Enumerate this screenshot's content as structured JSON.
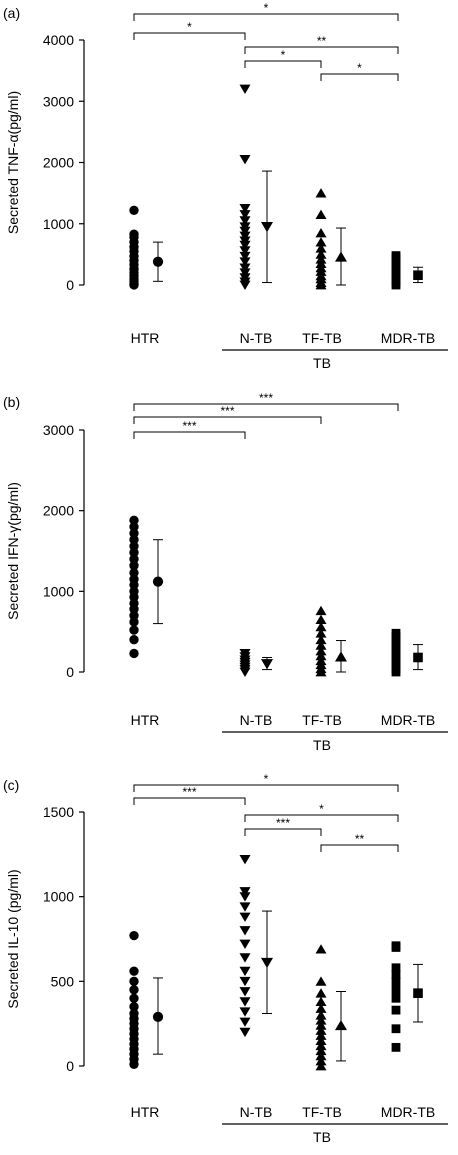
{
  "chart_data": [
    {
      "type": "scatter",
      "panel_label": "(a)",
      "ylabel": "Secreted TNF-α(pg/ml)",
      "ylim": [
        0,
        4000
      ],
      "yticks": [
        0,
        1000,
        2000,
        3000,
        4000
      ],
      "categories": [
        "HTR",
        "N-TB",
        "TF-TB",
        "MDR-TB"
      ],
      "group_label": "TB",
      "grid": false,
      "series": [
        {
          "category": "HTR",
          "marker": "circle",
          "values": [
            0,
            20,
            60,
            100,
            150,
            200,
            260,
            330,
            400,
            470,
            550,
            620,
            700,
            780,
            830,
            1220
          ],
          "mean": 380,
          "sd_low": 60,
          "sd_high": 700
        },
        {
          "category": "N-TB",
          "marker": "triangle-down",
          "values": [
            0,
            50,
            120,
            200,
            280,
            380,
            470,
            560,
            650,
            720,
            800,
            880,
            950,
            1050,
            1150,
            1250,
            2050,
            3200
          ],
          "mean": 950,
          "sd_low": 40,
          "sd_high": 1860
        },
        {
          "category": "TF-TB",
          "marker": "triangle-up",
          "values": [
            0,
            40,
            100,
            150,
            220,
            280,
            350,
            420,
            500,
            600,
            700,
            850,
            1150,
            1500
          ],
          "mean": 460,
          "sd_low": 0,
          "sd_high": 930
        },
        {
          "category": "MDR-TB",
          "marker": "square",
          "values": [
            0,
            40,
            80,
            120,
            160,
            200,
            240,
            280,
            320,
            360,
            400,
            440,
            480
          ],
          "mean": 160,
          "sd_low": 40,
          "sd_high": 290
        }
      ],
      "significance": [
        {
          "from": "HTR",
          "to": "MDR-TB",
          "label": "*"
        },
        {
          "from": "HTR",
          "to": "N-TB",
          "label": "*"
        },
        {
          "from": "N-TB",
          "to": "MDR-TB",
          "label": "**"
        },
        {
          "from": "N-TB",
          "to": "TF-TB",
          "label": "*"
        },
        {
          "from": "TF-TB",
          "to": "MDR-TB",
          "label": "*"
        }
      ]
    },
    {
      "type": "scatter",
      "panel_label": "(b)",
      "ylabel": "Secreted IFN-γ(pg/ml)",
      "ylim": [
        0,
        3000
      ],
      "yticks": [
        0,
        1000,
        2000,
        3000
      ],
      "categories": [
        "HTR",
        "N-TB",
        "TF-TB",
        "MDR-TB"
      ],
      "group_label": "TB",
      "grid": false,
      "series": [
        {
          "category": "HTR",
          "marker": "circle",
          "values": [
            230,
            400,
            520,
            620,
            700,
            780,
            850,
            930,
            1000,
            1080,
            1150,
            1230,
            1320,
            1400,
            1480,
            1560,
            1640,
            1720,
            1800,
            1880
          ],
          "mean": 1120,
          "sd_low": 600,
          "sd_high": 1640
        },
        {
          "category": "N-TB",
          "marker": "triangle-down",
          "values": [
            0,
            30,
            60,
            90,
            120,
            150,
            190,
            230
          ],
          "mean": 100,
          "sd_low": 30,
          "sd_high": 180
        },
        {
          "category": "TF-TB",
          "marker": "triangle-up",
          "values": [
            0,
            40,
            90,
            140,
            200,
            260,
            330,
            400,
            480,
            560,
            650,
            760
          ],
          "mean": 190,
          "sd_low": 0,
          "sd_high": 390
        },
        {
          "category": "MDR-TB",
          "marker": "square",
          "values": [
            0,
            40,
            80,
            120,
            160,
            200,
            240,
            280,
            320,
            360,
            400,
            440,
            480
          ],
          "mean": 180,
          "sd_low": 30,
          "sd_high": 340
        }
      ],
      "significance": [
        {
          "from": "HTR",
          "to": "MDR-TB",
          "label": "***"
        },
        {
          "from": "HTR",
          "to": "TF-TB",
          "label": "***"
        },
        {
          "from": "HTR",
          "to": "N-TB",
          "label": "***"
        }
      ]
    },
    {
      "type": "scatter",
      "panel_label": "(c)",
      "ylabel": "Secreted IL-10 (pg/ml)",
      "ylim": [
        0,
        1500
      ],
      "yticks": [
        0,
        500,
        1000,
        1500
      ],
      "categories": [
        "HTR",
        "N-TB",
        "TF-TB",
        "MDR-TB"
      ],
      "group_label": "TB",
      "grid": false,
      "series": [
        {
          "category": "HTR",
          "marker": "circle",
          "values": [
            10,
            40,
            70,
            100,
            130,
            160,
            190,
            220,
            250,
            280,
            310,
            350,
            400,
            450,
            500,
            560,
            770
          ],
          "mean": 290,
          "sd_low": 70,
          "sd_high": 520
        },
        {
          "category": "N-TB",
          "marker": "triangle-down",
          "values": [
            200,
            260,
            320,
            380,
            440,
            500,
            560,
            640,
            720,
            800,
            880,
            940,
            1000,
            1030,
            1220
          ],
          "mean": 610,
          "sd_low": 310,
          "sd_high": 915
        },
        {
          "category": "TF-TB",
          "marker": "triangle-up",
          "values": [
            0,
            30,
            60,
            90,
            120,
            150,
            180,
            210,
            240,
            270,
            300,
            340,
            380,
            430,
            500,
            690
          ],
          "mean": 240,
          "sd_low": 30,
          "sd_high": 440
        },
        {
          "category": "MDR-TB",
          "marker": "square",
          "values": [
            110,
            220,
            330,
            400,
            450,
            500,
            540,
            580,
            700,
            710
          ],
          "mean": 430,
          "sd_low": 260,
          "sd_high": 600
        }
      ],
      "significance": [
        {
          "from": "HTR",
          "to": "MDR-TB",
          "label": "*"
        },
        {
          "from": "HTR",
          "to": "N-TB",
          "label": "***"
        },
        {
          "from": "N-TB",
          "to": "MDR-TB",
          "label": "*"
        },
        {
          "from": "N-TB",
          "to": "TF-TB",
          "label": "***"
        },
        {
          "from": "TF-TB",
          "to": "MDR-TB",
          "label": "**"
        }
      ]
    }
  ]
}
